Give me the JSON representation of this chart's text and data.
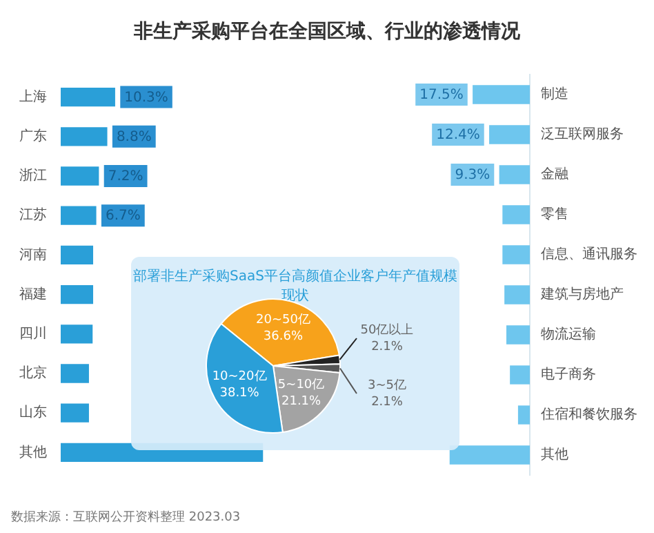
{
  "chart_data": [
    {
      "type": "bar",
      "title": "非生产采购平台在全国区域、行业的渗透情况",
      "orientation": "horizontal",
      "tick_labels": "y",
      "categories": [
        "上海",
        "广东",
        "浙江",
        "江苏",
        "河南",
        "福建",
        "四川",
        "北京",
        "山东",
        "其他"
      ],
      "values": [
        10.3,
        8.8,
        7.2,
        6.7,
        6.1,
        6.1,
        6.0,
        5.3,
        5.3,
        38.5
      ],
      "color": "#2a9fd8",
      "value_labels": [
        "10.3%",
        "8.8%",
        "7.2%",
        "6.7%",
        null,
        null,
        null,
        null,
        null,
        null
      ],
      "annotations": [
        "数据来源：互联网公开资料整理 2023.03"
      ]
    },
    {
      "type": "bar",
      "orientation": "horizontal",
      "tick_labels": "y",
      "categories": [
        "制造",
        "泛互联网服务",
        "金融",
        "零售",
        "信息、通讯服务",
        "建筑与房地产",
        "物流运输",
        "电子商务",
        "住宿和餐饮服务",
        "其他"
      ],
      "values": [
        17.5,
        12.4,
        9.3,
        8.3,
        8.3,
        7.7,
        7.1,
        6.0,
        3.5,
        24.6
      ],
      "color": "#6ec6ee",
      "value_labels": [
        "17.5%",
        "12.4%",
        "9.3%",
        null,
        null,
        null,
        null,
        null,
        null,
        null
      ]
    },
    {
      "type": "pie",
      "title": "部署非生产采购SaaS平台高颜值企业客户年产值规模现状",
      "categories": [
        "20~50亿",
        "50亿以上",
        "3~5亿",
        "5~10亿",
        "10~20亿"
      ],
      "values": [
        36.6,
        2.1,
        2.1,
        21.1,
        38.1
      ],
      "colors": [
        "#f7a21b",
        "#222222",
        "#555555",
        "#a3a3a3",
        "#2a9fd8"
      ],
      "value_labels": [
        "36.6%",
        "2.1%",
        "2.1%",
        "21.1%",
        "38.1%"
      ]
    }
  ]
}
